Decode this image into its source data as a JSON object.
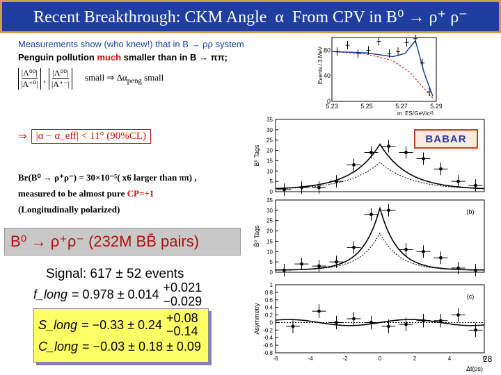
{
  "title": "Recent Breakthrough: CKM Angle  α  From CPV in B⁰ → ρ⁺ ρ⁻",
  "left": {
    "measurements": "Measurements show (who knew!) that in B → ρρ system",
    "penguin_prefix": "Penguin pollution ",
    "penguin_much": "much",
    "penguin_suffix": " smaller than in B → ππ;",
    "ratio1_num": "|Λ⁰⁰|",
    "ratio1_den": "|A⁺⁰|",
    "ratio2_num": "|Λ⁰⁰|",
    "ratio2_den": "|A⁺⁻|",
    "small_text": "small ⇒ Δα",
    "peng_sub": "peng",
    "small_text2": " small",
    "alpha_arrow": "⇒",
    "alpha_bound": "|α − α_eff| < 11°  (90%CL)",
    "br_line": "Br(B⁰ → ρ⁺ρ⁻) = 30×10⁻⁵( x6 larger than ππ) ,",
    "pure_prefix": "measured to be almost pure ",
    "pure_cp": "CP=+1",
    "polarized": "(Longitudinally polarized)"
  },
  "banner": "B⁰ → ρ⁺ρ⁻ (232M BB̄ pairs)",
  "signal": "Signal: 617 ± 52 events",
  "flong": {
    "label": "f_long",
    "value": "= 0.978 ± 0.014",
    "plus": "+0.021",
    "minus": "−0.029"
  },
  "slong": {
    "label": "S_long",
    "value": "= −0.33 ± 0.24",
    "plus": "+0.08",
    "minus": "−0.14"
  },
  "clong": {
    "label": "C_long",
    "value": "= −0.03 ± 0.18 ± 0.09"
  },
  "babar": "BABAR",
  "page_number": "28",
  "colors": {
    "title_bg": "#1f3fa0",
    "title_border": "#c9a04a",
    "accent_red": "#d01010",
    "box_yellow": "#ffff66"
  },
  "chart_data": [
    {
      "type": "line",
      "name": "mES",
      "xlabel": "m_ES(GeV/c²)",
      "ylabel": "Events / 3 MeV",
      "xlim": [
        5.23,
        5.29
      ],
      "ylim": [
        0,
        100
      ],
      "xticks": [
        "5.23",
        "5.25",
        "5.27",
        "5.29"
      ],
      "yticks": [
        "0",
        "40",
        "80"
      ],
      "points": [
        {
          "x": 5.233,
          "y": 78
        },
        {
          "x": 5.239,
          "y": 88
        },
        {
          "x": 5.245,
          "y": 75
        },
        {
          "x": 5.251,
          "y": 80
        },
        {
          "x": 5.257,
          "y": 94
        },
        {
          "x": 5.263,
          "y": 75
        },
        {
          "x": 5.268,
          "y": 78
        },
        {
          "x": 5.273,
          "y": 92
        },
        {
          "x": 5.278,
          "y": 98
        },
        {
          "x": 5.282,
          "y": 60
        },
        {
          "x": 5.286,
          "y": 15
        }
      ],
      "fit": [
        {
          "x": 5.23,
          "y": 78
        },
        {
          "x": 5.25,
          "y": 76
        },
        {
          "x": 5.265,
          "y": 70
        },
        {
          "x": 5.272,
          "y": 75
        },
        {
          "x": 5.278,
          "y": 95
        },
        {
          "x": 5.283,
          "y": 45
        },
        {
          "x": 5.288,
          "y": 8
        }
      ],
      "background": [
        {
          "x": 5.23,
          "y": 78
        },
        {
          "x": 5.25,
          "y": 74
        },
        {
          "x": 5.265,
          "y": 64
        },
        {
          "x": 5.275,
          "y": 45
        },
        {
          "x": 5.283,
          "y": 20
        },
        {
          "x": 5.288,
          "y": 5
        }
      ]
    },
    {
      "type": "scatter",
      "name": "B0 tags",
      "ylabel": "B⁰ Tags",
      "xlim": [
        -6,
        6
      ],
      "ylim": [
        0,
        35
      ],
      "yticks": [
        "0",
        "5",
        "10",
        "15",
        "20",
        "25",
        "30",
        "35"
      ],
      "points": [
        {
          "x": -5.5,
          "y": 1
        },
        {
          "x": -4.5,
          "y": 2
        },
        {
          "x": -3.5,
          "y": 2
        },
        {
          "x": -2.5,
          "y": 5
        },
        {
          "x": -1.5,
          "y": 13
        },
        {
          "x": -0.5,
          "y": 19
        },
        {
          "x": 0.5,
          "y": 22
        },
        {
          "x": 1.5,
          "y": 19
        },
        {
          "x": 2.5,
          "y": 16
        },
        {
          "x": 3.5,
          "y": 11
        },
        {
          "x": 4.5,
          "y": 5
        },
        {
          "x": 5.5,
          "y": 3
        }
      ]
    },
    {
      "type": "scatter",
      "name": "B0bar tags",
      "ylabel": "B̄⁰ Tags",
      "label": "(b)",
      "xlim": [
        -6,
        6
      ],
      "ylim": [
        0,
        35
      ],
      "yticks": [
        "0",
        "5",
        "10",
        "15",
        "20",
        "25",
        "30",
        "35"
      ],
      "points": [
        {
          "x": -5.5,
          "y": 1
        },
        {
          "x": -4.5,
          "y": 4
        },
        {
          "x": -3.5,
          "y": 3
        },
        {
          "x": -2.5,
          "y": 5
        },
        {
          "x": -1.5,
          "y": 12
        },
        {
          "x": -0.5,
          "y": 28
        },
        {
          "x": 0.5,
          "y": 30
        },
        {
          "x": 1.5,
          "y": 11
        },
        {
          "x": 2.5,
          "y": 10
        },
        {
          "x": 3.5,
          "y": 7
        },
        {
          "x": 4.5,
          "y": 2
        },
        {
          "x": 5.5,
          "y": 1
        }
      ]
    },
    {
      "type": "scatter",
      "name": "asymmetry",
      "ylabel": "Asymmetry",
      "xlabel": "Δt(ps)",
      "label": "(c)",
      "xlim": [
        -6,
        6
      ],
      "ylim": [
        -0.8,
        1
      ],
      "yticks": [
        "1",
        "0.8",
        "0.6",
        "0.4",
        "0.2",
        "0",
        "-0.2",
        "-0.4",
        "-0.6",
        "-0.8"
      ],
      "xticks": [
        "-6",
        "-4",
        "-2",
        "0",
        "2",
        "4",
        "6"
      ],
      "points": [
        {
          "x": -5,
          "y": -0.1
        },
        {
          "x": -3.5,
          "y": 0.3
        },
        {
          "x": -2.5,
          "y": 0.0
        },
        {
          "x": -1.5,
          "y": 0.1
        },
        {
          "x": -0.5,
          "y": 0.0
        },
        {
          "x": 0.5,
          "y": -0.1
        },
        {
          "x": 1.5,
          "y": -0.05
        },
        {
          "x": 2.5,
          "y": 0.05
        },
        {
          "x": 3.5,
          "y": 0.05
        },
        {
          "x": 4.5,
          "y": 0.2
        },
        {
          "x": 5.5,
          "y": -0.2
        }
      ]
    }
  ]
}
